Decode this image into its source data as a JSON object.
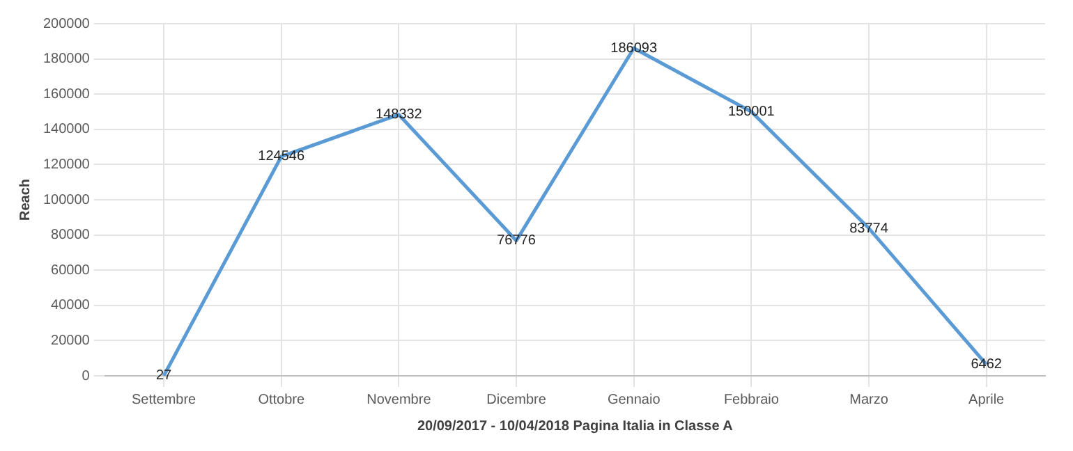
{
  "chart_data": {
    "type": "line",
    "xlabel": "20/09/2017 - 10/04/2018 Pagina Italia in Classe A",
    "ylabel": "Reach",
    "categories": [
      "Settembre",
      "Ottobre",
      "Novembre",
      "Dicembre",
      "Gennaio",
      "Febbraio",
      "Marzo",
      "Aprile"
    ],
    "series": [
      {
        "color": "#5b9bd5",
        "values": [
          27,
          124546,
          148332,
          76776,
          186093,
          150001,
          83774,
          6462
        ]
      }
    ],
    "ylim": [
      0,
      200000
    ],
    "yticks": [
      0,
      20000,
      40000,
      60000,
      80000,
      100000,
      120000,
      140000,
      160000,
      180000,
      200000
    ],
    "grid": true,
    "data_labels": true,
    "marker": "none",
    "line_style": "solid",
    "legend": false
  }
}
